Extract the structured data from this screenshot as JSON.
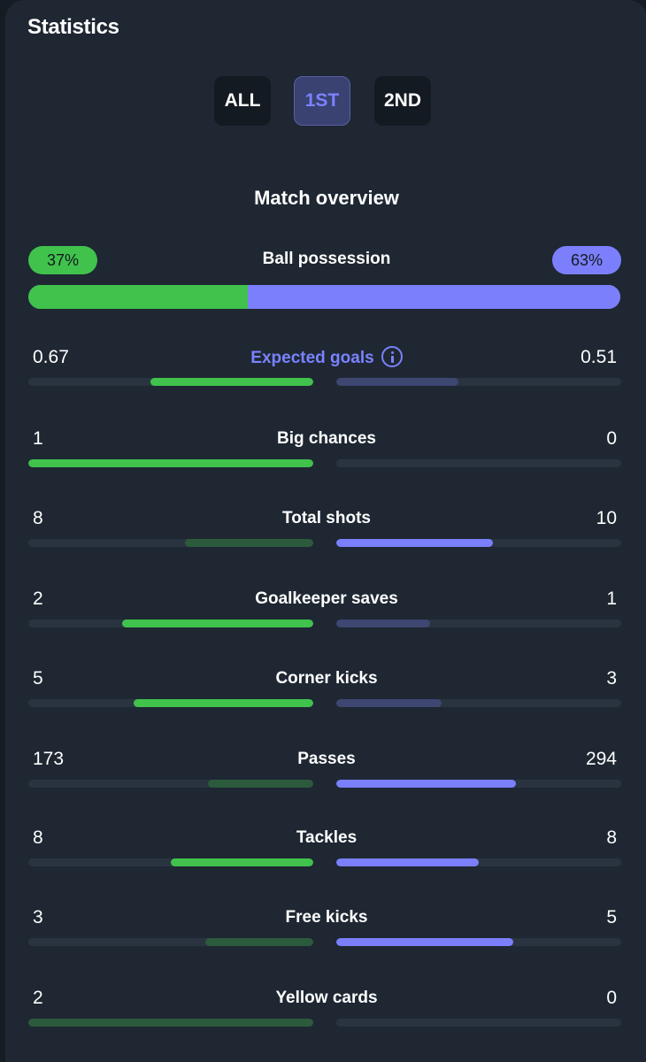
{
  "header": {
    "title": "Statistics"
  },
  "tabs": [
    {
      "label": "ALL",
      "active": false
    },
    {
      "label": "1ST",
      "active": true
    },
    {
      "label": "2ND",
      "active": false
    }
  ],
  "overview": {
    "title": "Match overview",
    "possession": {
      "label": "Ball possession",
      "home": "37%",
      "away": "63%",
      "home_fraction": 0.37
    }
  },
  "stats": [
    {
      "label": "Expected goals",
      "home": "0.67",
      "away": "0.51",
      "home_fill": 0.57,
      "away_fill": 0.43,
      "home_strong": true,
      "away_strong": false,
      "accent": true,
      "info": true
    },
    {
      "label": "Big chances",
      "home": "1",
      "away": "0",
      "home_fill": 1.0,
      "away_fill": 0.0,
      "home_strong": true,
      "away_strong": false
    },
    {
      "label": "Total shots",
      "home": "8",
      "away": "10",
      "home_fill": 0.45,
      "away_fill": 0.55,
      "home_strong": false,
      "away_strong": true
    },
    {
      "label": "Goalkeeper saves",
      "home": "2",
      "away": "1",
      "home_fill": 0.67,
      "away_fill": 0.33,
      "home_strong": true,
      "away_strong": false
    },
    {
      "label": "Corner kicks",
      "home": "5",
      "away": "3",
      "home_fill": 0.63,
      "away_fill": 0.37,
      "home_strong": true,
      "away_strong": false
    },
    {
      "label": "Passes",
      "home": "173",
      "away": "294",
      "home_fill": 0.37,
      "away_fill": 0.63,
      "home_strong": false,
      "away_strong": true
    },
    {
      "label": "Tackles",
      "home": "8",
      "away": "8",
      "home_fill": 0.5,
      "away_fill": 0.5,
      "home_strong": true,
      "away_strong": true
    },
    {
      "label": "Free kicks",
      "home": "3",
      "away": "5",
      "home_fill": 0.38,
      "away_fill": 0.62,
      "home_strong": false,
      "away_strong": true
    },
    {
      "label": "Yellow cards",
      "home": "2",
      "away": "0",
      "home_fill": 1.0,
      "away_fill": 0.0,
      "home_strong": false,
      "away_strong": false
    }
  ],
  "colors": {
    "home": "#40c24c",
    "away": "#7b7ffb",
    "home_dim": "#2c5a3c",
    "away_dim": "#3e4672",
    "background": "#1e2732"
  },
  "icons": {
    "info": "info-icon"
  }
}
